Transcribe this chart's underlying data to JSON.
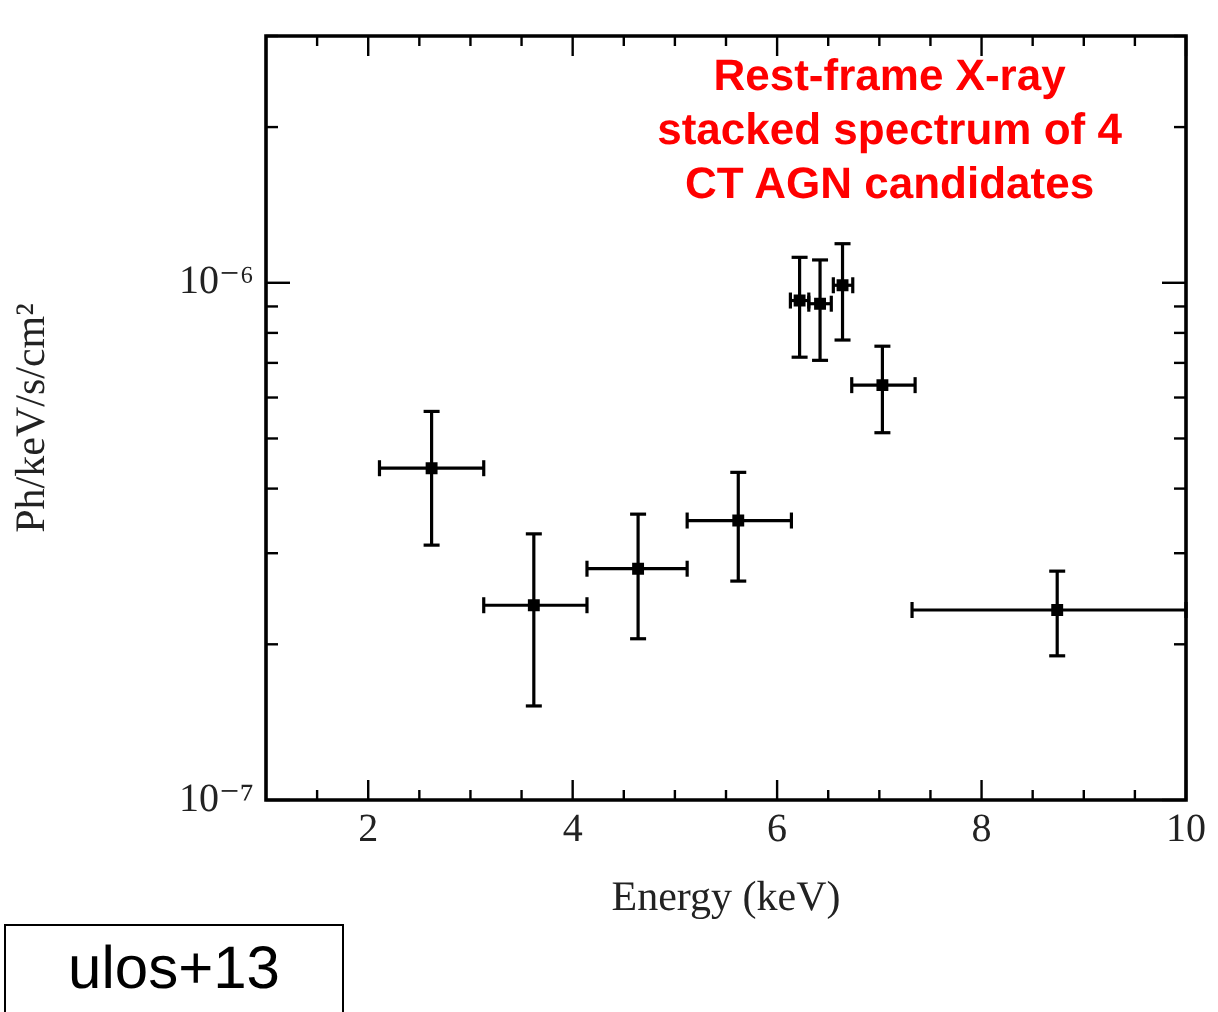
{
  "chart_data": {
    "type": "scatter",
    "title": "Rest-frame X-ray stacked spectrum of 4 CT AGN candidates",
    "xlabel": "Energy (keV)",
    "ylabel": "Ph/keV/s/cm²",
    "x": [
      2.62,
      3.62,
      4.64,
      5.62,
      6.22,
      6.42,
      6.64,
      7.03,
      8.74
    ],
    "values": [
      4.38e-07,
      2.38e-07,
      2.8e-07,
      3.47e-07,
      9.24e-07,
      9.11e-07,
      9.89e-07,
      6.34e-07,
      2.33e-07
    ],
    "errors": [
      [
        3.11e-07,
        5.64e-07
      ],
      [
        1.52e-07,
        3.27e-07
      ],
      [
        2.05e-07,
        3.57e-07
      ],
      [
        2.65e-07,
        4.3e-07
      ],
      [
        7.18e-07,
        1.12e-06
      ],
      [
        7.08e-07,
        1.107e-06
      ],
      [
        7.75e-07,
        1.19e-06
      ],
      [
        5.13e-07,
        7.54e-07
      ],
      [
        1.9e-07,
        2.77e-07
      ]
    ],
    "xerrors": [
      [
        2.11,
        3.13
      ],
      [
        3.13,
        4.14
      ],
      [
        4.14,
        5.12
      ],
      [
        5.12,
        6.14
      ],
      [
        6.13,
        6.31
      ],
      [
        6.31,
        6.53
      ],
      [
        6.55,
        6.74
      ],
      [
        6.73,
        7.35
      ],
      [
        7.32,
        10
      ]
    ],
    "color": "#000000",
    "marker": "square",
    "log": "y",
    "grid": false,
    "legend": false,
    "xlim": [
      1,
      10
    ],
    "xticks": [
      {
        "value": 1.5,
        "label": null
      },
      2,
      {
        "value": 2.5,
        "label": null
      },
      {
        "value": 3,
        "label": null
      },
      {
        "value": 3.5,
        "label": null
      },
      4,
      {
        "value": 4.5,
        "label": null
      },
      {
        "value": 5,
        "label": null
      },
      {
        "value": 5.5,
        "label": null
      },
      6,
      {
        "value": 6.5,
        "label": null
      },
      {
        "value": 7,
        "label": null
      },
      {
        "value": 7.5,
        "label": null
      },
      8,
      {
        "value": 8.5,
        "label": null
      },
      {
        "value": 9,
        "label": null
      },
      {
        "value": 9.5,
        "label": null
      },
      10
    ],
    "ylim": [
      1e-07,
      3e-06
    ],
    "yticks": [
      {
        "value": 1e-07,
        "label": "10⁻⁷"
      },
      {
        "value": 2e-07,
        "label": null
      },
      {
        "value": 3e-07,
        "label": null
      },
      {
        "value": 4e-07,
        "label": null
      },
      {
        "value": 5e-07,
        "label": null
      },
      {
        "value": 6e-07,
        "label": null
      },
      {
        "value": 7e-07,
        "label": null
      },
      {
        "value": 8e-07,
        "label": null
      },
      {
        "value": 9e-07,
        "label": null
      },
      {
        "value": 1e-06,
        "label": "10⁻⁶"
      },
      {
        "value": 2e-06,
        "label": null
      },
      {
        "value": 3e-06,
        "label": null
      }
    ],
    "annotations": [
      "ulos+13"
    ]
  }
}
